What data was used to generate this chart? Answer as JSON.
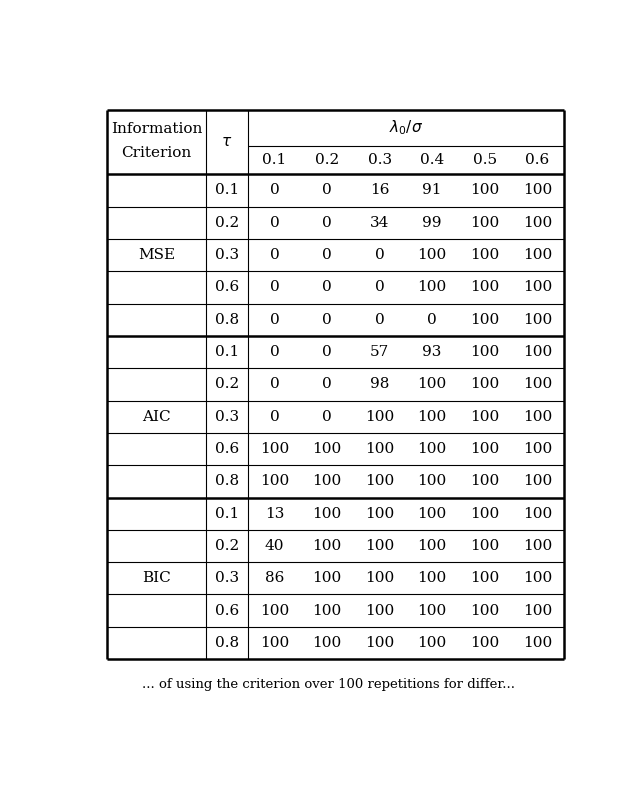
{
  "lambda_vals": [
    "0.1",
    "0.2",
    "0.3",
    "0.4",
    "0.5",
    "0.6"
  ],
  "tau_vals": [
    "0.1",
    "0.2",
    "0.3",
    "0.6",
    "0.8"
  ],
  "criteria": [
    "MSE",
    "AIC",
    "BIC"
  ],
  "data": {
    "MSE": [
      [
        0,
        0,
        16,
        91,
        100,
        100
      ],
      [
        0,
        0,
        34,
        99,
        100,
        100
      ],
      [
        0,
        0,
        0,
        100,
        100,
        100
      ],
      [
        0,
        0,
        0,
        100,
        100,
        100
      ],
      [
        0,
        0,
        0,
        0,
        100,
        100
      ]
    ],
    "AIC": [
      [
        0,
        0,
        57,
        93,
        100,
        100
      ],
      [
        0,
        0,
        98,
        100,
        100,
        100
      ],
      [
        0,
        0,
        100,
        100,
        100,
        100
      ],
      [
        100,
        100,
        100,
        100,
        100,
        100
      ],
      [
        100,
        100,
        100,
        100,
        100,
        100
      ]
    ],
    "BIC": [
      [
        13,
        100,
        100,
        100,
        100,
        100
      ],
      [
        40,
        100,
        100,
        100,
        100,
        100
      ],
      [
        86,
        100,
        100,
        100,
        100,
        100
      ],
      [
        100,
        100,
        100,
        100,
        100,
        100
      ],
      [
        100,
        100,
        100,
        100,
        100,
        100
      ]
    ]
  },
  "caption": "... of using the criterion over 100 repetitions for differ...",
  "background_color": "#ffffff",
  "text_color": "#000000",
  "figsize": [
    6.4,
    7.92
  ],
  "dpi": 100
}
